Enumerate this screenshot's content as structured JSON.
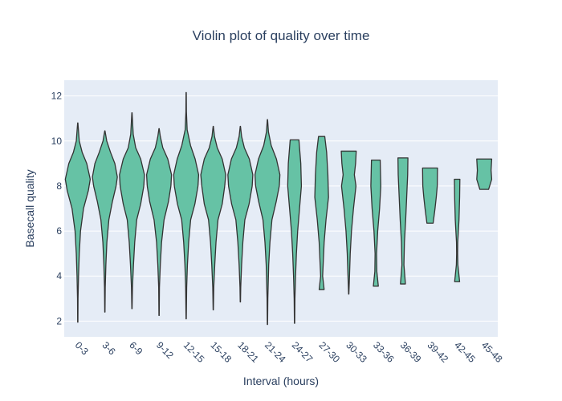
{
  "chart_data": {
    "type": "violin",
    "title": "Violin plot of quality over time",
    "xlabel": "Interval (hours)",
    "ylabel": "Basecall quality",
    "ylim": [
      1.3,
      12.7
    ],
    "y_ticks": [
      2,
      4,
      6,
      8,
      10,
      12
    ],
    "grid": true,
    "legend": "none",
    "colors": {
      "plot_bg": "#e5ecf6",
      "fill": "#66c2a5",
      "line": "#333333",
      "grid": "#ffffff",
      "text": "#2a3f5f"
    },
    "categories": [
      "0-3",
      "3-6",
      "6-9",
      "9-12",
      "12-15",
      "15-18",
      "18-21",
      "21-24",
      "24-27",
      "27-30",
      "30-33",
      "33-36",
      "36-39",
      "39-42",
      "42-45",
      "45-48"
    ],
    "violins": [
      {
        "category": "0-3",
        "min": 1.95,
        "max": 10.8,
        "profile": [
          [
            1.95,
            0.01
          ],
          [
            3.0,
            0.02
          ],
          [
            4.0,
            0.06
          ],
          [
            5.0,
            0.12
          ],
          [
            6.0,
            0.22
          ],
          [
            7.0,
            0.46
          ],
          [
            7.8,
            0.85
          ],
          [
            8.3,
            1.0
          ],
          [
            9.0,
            0.72
          ],
          [
            9.5,
            0.35
          ],
          [
            10.0,
            0.12
          ],
          [
            10.8,
            0.01
          ]
        ]
      },
      {
        "category": "3-6",
        "min": 2.4,
        "max": 10.45,
        "profile": [
          [
            2.4,
            0.01
          ],
          [
            3.5,
            0.03
          ],
          [
            4.5,
            0.08
          ],
          [
            5.5,
            0.16
          ],
          [
            6.5,
            0.32
          ],
          [
            7.3,
            0.6
          ],
          [
            8.0,
            0.9
          ],
          [
            8.4,
            1.0
          ],
          [
            9.0,
            0.8
          ],
          [
            9.5,
            0.45
          ],
          [
            10.0,
            0.15
          ],
          [
            10.45,
            0.01
          ]
        ]
      },
      {
        "category": "6-9",
        "min": 2.55,
        "max": 11.25,
        "profile": [
          [
            2.55,
            0.01
          ],
          [
            3.5,
            0.04
          ],
          [
            4.5,
            0.12
          ],
          [
            5.5,
            0.22
          ],
          [
            6.5,
            0.38
          ],
          [
            7.2,
            0.7
          ],
          [
            8.0,
            0.95
          ],
          [
            8.5,
            1.0
          ],
          [
            9.2,
            0.7
          ],
          [
            9.7,
            0.3
          ],
          [
            10.3,
            0.1
          ],
          [
            11.25,
            0.01
          ]
        ]
      },
      {
        "category": "9-12",
        "min": 2.25,
        "max": 10.55,
        "profile": [
          [
            2.25,
            0.01
          ],
          [
            3.5,
            0.03
          ],
          [
            4.5,
            0.1
          ],
          [
            5.5,
            0.2
          ],
          [
            6.5,
            0.4
          ],
          [
            7.3,
            0.75
          ],
          [
            8.0,
            0.95
          ],
          [
            8.5,
            1.0
          ],
          [
            9.2,
            0.7
          ],
          [
            9.7,
            0.3
          ],
          [
            10.2,
            0.1
          ],
          [
            10.55,
            0.01
          ]
        ]
      },
      {
        "category": "12-15",
        "min": 2.1,
        "max": 12.15,
        "profile": [
          [
            2.1,
            0.01
          ],
          [
            3.5,
            0.04
          ],
          [
            4.5,
            0.1
          ],
          [
            5.5,
            0.2
          ],
          [
            6.5,
            0.36
          ],
          [
            7.2,
            0.7
          ],
          [
            8.0,
            0.95
          ],
          [
            8.5,
            1.0
          ],
          [
            9.2,
            0.72
          ],
          [
            9.8,
            0.35
          ],
          [
            10.5,
            0.08
          ],
          [
            11.3,
            0.02
          ],
          [
            12.15,
            0.01
          ]
        ]
      },
      {
        "category": "15-18",
        "min": 2.5,
        "max": 10.65,
        "profile": [
          [
            2.5,
            0.01
          ],
          [
            3.5,
            0.04
          ],
          [
            4.5,
            0.12
          ],
          [
            5.5,
            0.22
          ],
          [
            6.5,
            0.38
          ],
          [
            7.2,
            0.72
          ],
          [
            8.0,
            0.92
          ],
          [
            8.5,
            1.0
          ],
          [
            9.2,
            0.72
          ],
          [
            9.7,
            0.32
          ],
          [
            10.2,
            0.1
          ],
          [
            10.65,
            0.01
          ]
        ]
      },
      {
        "category": "18-21",
        "min": 2.85,
        "max": 10.65,
        "profile": [
          [
            2.85,
            0.01
          ],
          [
            3.5,
            0.03
          ],
          [
            4.5,
            0.1
          ],
          [
            5.5,
            0.2
          ],
          [
            6.5,
            0.36
          ],
          [
            7.2,
            0.7
          ],
          [
            8.0,
            0.95
          ],
          [
            8.5,
            1.0
          ],
          [
            9.2,
            0.72
          ],
          [
            9.7,
            0.32
          ],
          [
            10.2,
            0.1
          ],
          [
            10.65,
            0.01
          ]
        ]
      },
      {
        "category": "21-24",
        "min": 1.85,
        "max": 10.95,
        "profile": [
          [
            1.85,
            0.01
          ],
          [
            3.0,
            0.03
          ],
          [
            4.5,
            0.1
          ],
          [
            5.5,
            0.2
          ],
          [
            6.5,
            0.36
          ],
          [
            7.3,
            0.7
          ],
          [
            8.0,
            0.95
          ],
          [
            8.5,
            1.0
          ],
          [
            9.2,
            0.72
          ],
          [
            9.8,
            0.3
          ],
          [
            10.4,
            0.08
          ],
          [
            10.95,
            0.01
          ]
        ]
      },
      {
        "category": "24-27",
        "min": 1.9,
        "max": 10.05,
        "profile": [
          [
            1.9,
            0.01
          ],
          [
            3.0,
            0.03
          ],
          [
            4.0,
            0.08
          ],
          [
            5.0,
            0.15
          ],
          [
            6.0,
            0.25
          ],
          [
            7.0,
            0.4
          ],
          [
            8.0,
            0.55
          ],
          [
            9.0,
            0.5
          ],
          [
            10.05,
            0.35
          ]
        ]
      },
      {
        "category": "27-30",
        "min": 3.4,
        "max": 10.2,
        "profile": [
          [
            3.4,
            0.2
          ],
          [
            4.0,
            0.08
          ],
          [
            4.5,
            0.12
          ],
          [
            5.5,
            0.2
          ],
          [
            6.5,
            0.35
          ],
          [
            7.5,
            0.55
          ],
          [
            8.5,
            0.5
          ],
          [
            9.5,
            0.4
          ],
          [
            10.2,
            0.25
          ]
        ]
      },
      {
        "category": "30-33",
        "min": 3.2,
        "max": 9.55,
        "profile": [
          [
            3.2,
            0.01
          ],
          [
            4.0,
            0.06
          ],
          [
            5.0,
            0.12
          ],
          [
            6.0,
            0.22
          ],
          [
            7.0,
            0.38
          ],
          [
            8.0,
            0.58
          ],
          [
            8.5,
            0.45
          ],
          [
            9.0,
            0.55
          ],
          [
            9.55,
            0.6
          ]
        ]
      },
      {
        "category": "33-36",
        "min": 3.55,
        "max": 9.15,
        "profile": [
          [
            3.55,
            0.2
          ],
          [
            4.2,
            0.08
          ],
          [
            5.0,
            0.06
          ],
          [
            6.0,
            0.15
          ],
          [
            7.0,
            0.3
          ],
          [
            8.0,
            0.4
          ],
          [
            9.15,
            0.35
          ]
        ]
      },
      {
        "category": "36-39",
        "min": 3.65,
        "max": 9.25,
        "profile": [
          [
            3.65,
            0.2
          ],
          [
            4.5,
            0.08
          ],
          [
            5.5,
            0.12
          ],
          [
            6.5,
            0.22
          ],
          [
            7.5,
            0.3
          ],
          [
            8.5,
            0.38
          ],
          [
            9.25,
            0.4
          ]
        ]
      },
      {
        "category": "39-42",
        "min": 6.35,
        "max": 8.8,
        "profile": [
          [
            6.35,
            0.25
          ],
          [
            7.0,
            0.4
          ],
          [
            7.5,
            0.5
          ],
          [
            8.0,
            0.58
          ],
          [
            8.8,
            0.6
          ]
        ]
      },
      {
        "category": "42-45",
        "min": 3.75,
        "max": 8.3,
        "profile": [
          [
            3.75,
            0.2
          ],
          [
            4.5,
            0.06
          ],
          [
            5.0,
            0.04
          ],
          [
            5.5,
            0.05
          ],
          [
            6.5,
            0.15
          ],
          [
            7.5,
            0.2
          ],
          [
            8.3,
            0.22
          ]
        ]
      },
      {
        "category": "45-48",
        "min": 7.85,
        "max": 9.2,
        "profile": [
          [
            7.85,
            0.35
          ],
          [
            8.3,
            0.6
          ],
          [
            8.7,
            0.55
          ],
          [
            9.2,
            0.6
          ]
        ]
      }
    ]
  }
}
